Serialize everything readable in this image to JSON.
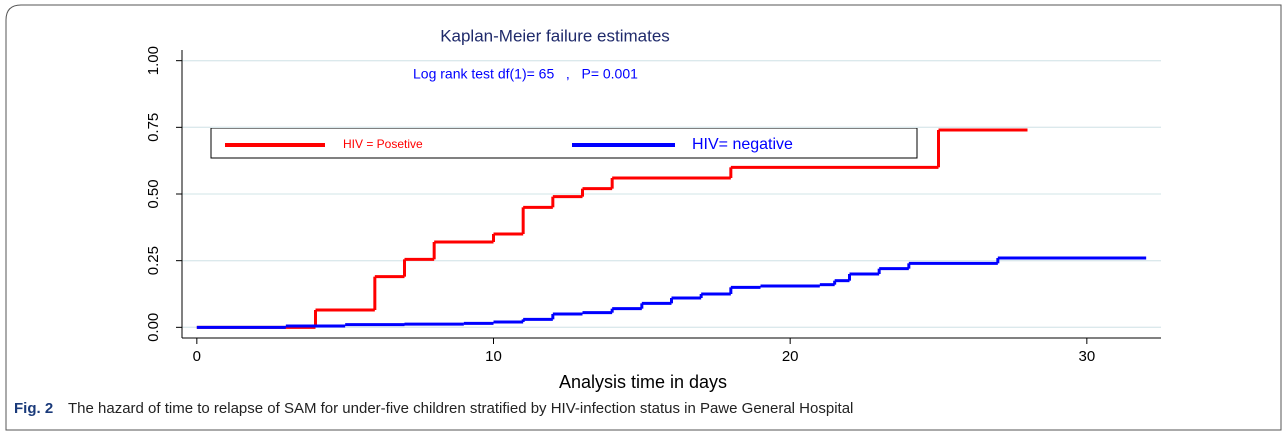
{
  "chart_data": {
    "type": "step",
    "title": "Kaplan-Meier failure estimates",
    "annotation": "Log rank test df(1)= 65   ,   P= 0.001",
    "x_label": "Analysis time in days",
    "figure_label": "Fig. 2",
    "caption": "The hazard of time to relapse of SAM for under-five children stratified by HIV-infection status in Pawe General Hospital",
    "xlim": [
      -0.5,
      32.5
    ],
    "xticks": [
      0,
      10,
      20,
      30
    ],
    "ylim": [
      -0.04,
      1.04
    ],
    "yticks": [
      {
        "value": 0,
        "label": "0.00"
      },
      {
        "value": 0.25,
        "label": "0.25"
      },
      {
        "value": 0.5,
        "label": "0.50"
      },
      {
        "value": 0.75,
        "label": "0.75"
      },
      {
        "value": 1,
        "label": "1.00"
      }
    ],
    "grid": true,
    "series": [
      {
        "name": "HIV = Posetive",
        "color": "#ff0000",
        "x": [
          0,
          4,
          6,
          7,
          8,
          10,
          11,
          12,
          13,
          14,
          18,
          25,
          28
        ],
        "values": [
          0,
          0.065,
          0.19,
          0.255,
          0.32,
          0.35,
          0.45,
          0.49,
          0.52,
          0.56,
          0.6,
          0.74,
          0.74
        ]
      },
      {
        "name": "HIV= negative",
        "color": "#0000ff",
        "x": [
          0,
          3,
          5,
          7,
          9,
          10,
          11,
          12,
          13,
          14,
          15,
          16,
          17,
          18,
          19,
          21,
          21.5,
          22,
          23,
          24,
          27,
          32
        ],
        "values": [
          0,
          0.005,
          0.01,
          0.012,
          0.015,
          0.02,
          0.03,
          0.05,
          0.055,
          0.07,
          0.09,
          0.11,
          0.125,
          0.15,
          0.155,
          0.16,
          0.175,
          0.2,
          0.22,
          0.24,
          0.26,
          0.26
        ]
      }
    ]
  }
}
